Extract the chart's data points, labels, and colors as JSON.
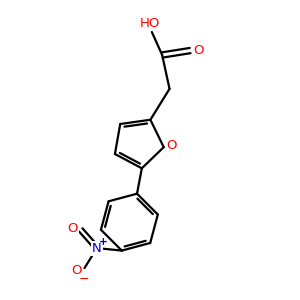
{
  "bg_color": "#ffffff",
  "bond_color": "#000000",
  "o_color": "#ff0000",
  "n_color": "#0000cd",
  "lw": 1.6,
  "figsize": [
    3.0,
    3.0
  ],
  "dpi": 100,
  "xlim": [
    0,
    10
  ],
  "ylim": [
    0,
    10
  ]
}
